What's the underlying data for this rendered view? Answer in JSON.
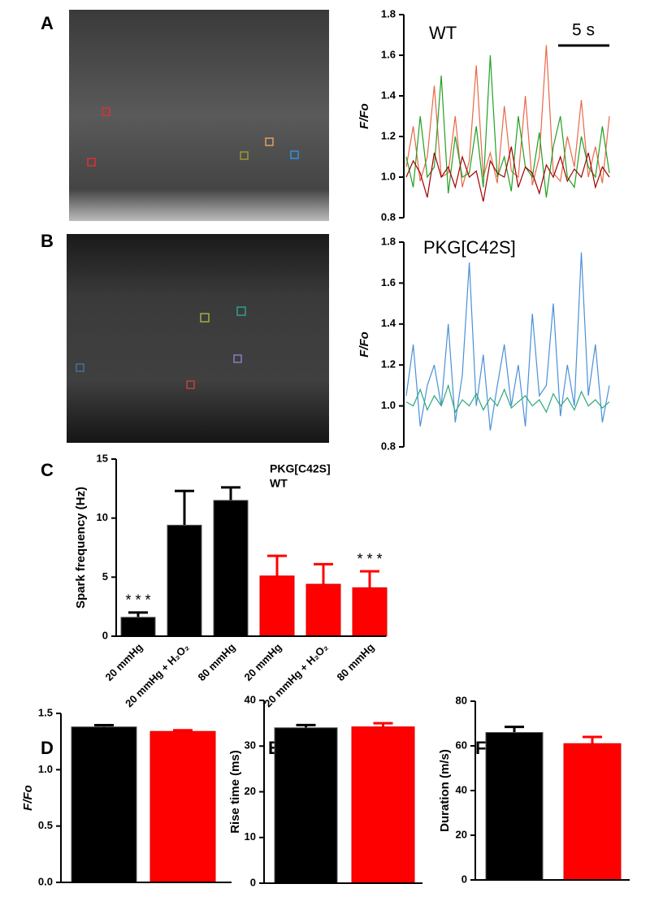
{
  "chart_data": [
    {
      "type": "line",
      "panel": "A",
      "title": "WT",
      "ylabel": "F/Fo",
      "scale_bar": "5 s",
      "ylim": [
        0.8,
        1.8
      ],
      "yticks": [
        0.8,
        {
          "value": 1,
          "label": "1.0"
        },
        1.2,
        1.4,
        1.6,
        1.8
      ],
      "series": [
        {
          "color": "#e8684a",
          "values": [
            1.05,
            1.25,
            0.98,
            1.1,
            1.45,
            1.0,
            1.02,
            1.3,
            0.95,
            1.08,
            1.55,
            1.0,
            1.12,
            0.97,
            1.35,
            1.03,
            1.0,
            1.4,
            0.96,
            1.1,
            1.65,
            1.02,
            0.98,
            1.2,
            1.05,
            1.38,
            1.0,
            1.15,
            0.97,
            1.3
          ]
        },
        {
          "color": "#22a022",
          "values": [
            1.1,
            0.95,
            1.3,
            1.0,
            1.05,
            1.5,
            0.92,
            1.2,
            1.0,
            1.02,
            1.25,
            0.95,
            1.6,
            1.0,
            1.1,
            0.93,
            1.3,
            1.05,
            1.0,
            1.22,
            0.9,
            1.15,
            1.3,
            1.0,
            0.95,
            1.2,
            1.05,
            1.0,
            1.25,
            1.02
          ]
        },
        {
          "color": "#a00000",
          "values": [
            1.0,
            1.08,
            1.02,
            0.9,
            1.12,
            1.0,
            1.05,
            0.95,
            1.1,
            1.0,
            1.03,
            0.88,
            1.08,
            1.02,
            1.0,
            1.15,
            0.95,
            1.05,
            1.02,
            0.92,
            1.06,
            1.0,
            1.1,
            0.98,
            1.04,
            1.0,
            1.12,
            0.95,
            1.05,
            1.0
          ]
        }
      ]
    },
    {
      "type": "line",
      "panel": "B",
      "title": "PKG[C42S]",
      "ylabel": "F/Fo",
      "ylim": [
        0.8,
        1.8
      ],
      "yticks": [
        0.8,
        {
          "value": 1,
          "label": "1.0"
        },
        1.2,
        1.4,
        1.6,
        1.8
      ],
      "series": [
        {
          "color": "#4a90d9",
          "values": [
            1.05,
            1.3,
            0.9,
            1.1,
            1.2,
            1.0,
            1.4,
            0.92,
            1.15,
            1.7,
            1.0,
            1.25,
            0.88,
            1.1,
            1.3,
            1.0,
            1.2,
            0.9,
            1.45,
            1.05,
            1.1,
            1.5,
            0.95,
            1.2,
            1.0,
            1.75,
            1.05,
            1.3,
            0.92,
            1.1
          ]
        },
        {
          "color": "#2ea87a",
          "values": [
            1.02,
            1.0,
            1.08,
            0.98,
            1.05,
            1.0,
            1.1,
            0.97,
            1.03,
            1.0,
            1.06,
            0.98,
            1.04,
            1.0,
            1.08,
            0.99,
            1.02,
            1.05,
            1.0,
            1.03,
            0.97,
            1.06,
            1.0,
            1.04,
            0.98,
            1.07,
            1.0,
            1.03,
            0.99,
            1.02
          ]
        }
      ]
    },
    {
      "type": "bar",
      "panel": "C",
      "ylabel": "Spark frequency (Hz)",
      "categories": [
        "20 mmHg",
        "20 mmHg + H₂O₂",
        "80 mmHg",
        "20 mmHg",
        "20 mmHg + H₂O₂",
        "80 mmHg"
      ],
      "values": [
        1.6,
        9.4,
        11.5,
        5.1,
        4.4,
        4.1
      ],
      "errors": [
        0.4,
        2.9,
        1.1,
        1.7,
        1.7,
        1.4
      ],
      "colors": [
        "#000000",
        "#000000",
        "#000000",
        "#ff0000",
        "#ff0000",
        "#ff0000"
      ],
      "significance": [
        "* * *",
        null,
        null,
        null,
        null,
        "* * *"
      ],
      "legend": [
        {
          "name": "PKG[C42S]",
          "color": "#ff2020"
        },
        {
          "name": "WT",
          "color": "#000000"
        }
      ],
      "ylim": [
        0,
        15
      ],
      "yticks": [
        0,
        5,
        10,
        15
      ]
    },
    {
      "type": "bar",
      "panel": "D",
      "ylabel": "F/Fo",
      "categories": [
        null,
        null
      ],
      "values": [
        1.38,
        1.34
      ],
      "errors": [
        0.015,
        0.01
      ],
      "colors": [
        "#000000",
        "#ff0000"
      ],
      "ylim": [
        0,
        1.5
      ],
      "yticks": [
        {
          "value": 0,
          "label": "0.0"
        },
        0.5,
        {
          "value": 1,
          "label": "1.0"
        },
        1.5
      ]
    },
    {
      "type": "bar",
      "panel": "E",
      "ylabel": "Rise time (ms)",
      "categories": [
        null,
        null
      ],
      "values": [
        34,
        34.2
      ],
      "errors": [
        0.6,
        0.8
      ],
      "colors": [
        "#000000",
        "#ff0000"
      ],
      "ylim": [
        0,
        40
      ],
      "yticks": [
        0,
        10,
        20,
        30,
        40
      ]
    },
    {
      "type": "bar",
      "panel": "F",
      "ylabel": "Duration  (m/s)",
      "categories": [
        null,
        null
      ],
      "values": [
        66,
        61
      ],
      "errors": [
        2.5,
        3
      ],
      "colors": [
        "#000000",
        "#ff0000"
      ],
      "ylim": [
        0,
        80
      ],
      "yticks": [
        0,
        20,
        40,
        60,
        80
      ]
    }
  ]
}
